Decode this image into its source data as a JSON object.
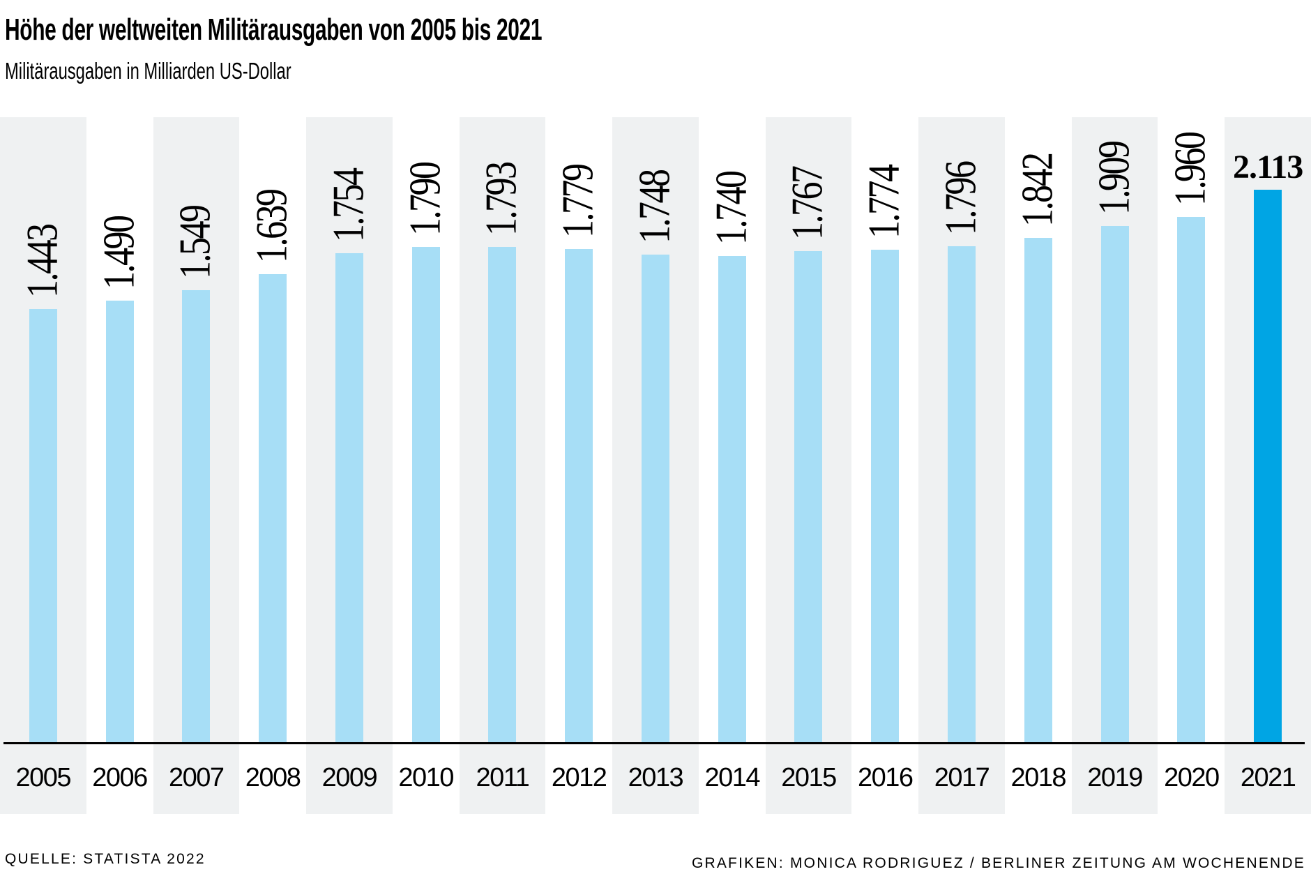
{
  "page": {
    "title": "Höhe der weltweiten Militärausgaben von 2005 bis 2021",
    "subtitle": "Militärausgaben in Milliarden US-Dollar"
  },
  "footer": {
    "source": "QUELLE: STATISTA 2022",
    "credit": "GRAFIKEN: MONICA RODRIGUEZ / BERLINER ZEITUNG AM WOCHENENDE"
  },
  "chart_data": {
    "type": "bar",
    "title": "Höhe der weltweiten Militärausgaben von 2005 bis 2021",
    "subtitle": "Militärausgaben in Milliarden US-Dollar",
    "xlabel": "",
    "ylabel": "Militärausgaben in Milliarden US-Dollar",
    "unit": "Milliarden US-Dollar",
    "categories": [
      "2005",
      "2006",
      "2007",
      "2008",
      "2009",
      "2010",
      "2011",
      "2012",
      "2013",
      "2014",
      "2015",
      "2016",
      "2017",
      "2018",
      "2019",
      "2020",
      "2021"
    ],
    "values": [
      1443,
      1490,
      1549,
      1639,
      1754,
      1790,
      1793,
      1779,
      1748,
      1740,
      1767,
      1774,
      1796,
      1842,
      1909,
      1960,
      2113
    ],
    "value_labels": [
      "1.443",
      "1.490",
      "1.549",
      "1.639",
      "1.754",
      "1.790",
      "1.793",
      "1.779",
      "1.748",
      "1.740",
      "1.767",
      "1.774",
      "1.796",
      "1.842",
      "1.909",
      "1.960",
      "2.113"
    ],
    "highlight_category": "2021",
    "grid": false,
    "legend": "none",
    "value_label_orientation": "rotated-90-ccw-except-highlight",
    "background_stripes": "alternating-starting-gray",
    "colors": {
      "bar": "#a7def6",
      "bar_highlight": "#00a5e4",
      "column_stripe": "#eff1f2",
      "axis_line": "#000000",
      "text": "#000000"
    }
  }
}
